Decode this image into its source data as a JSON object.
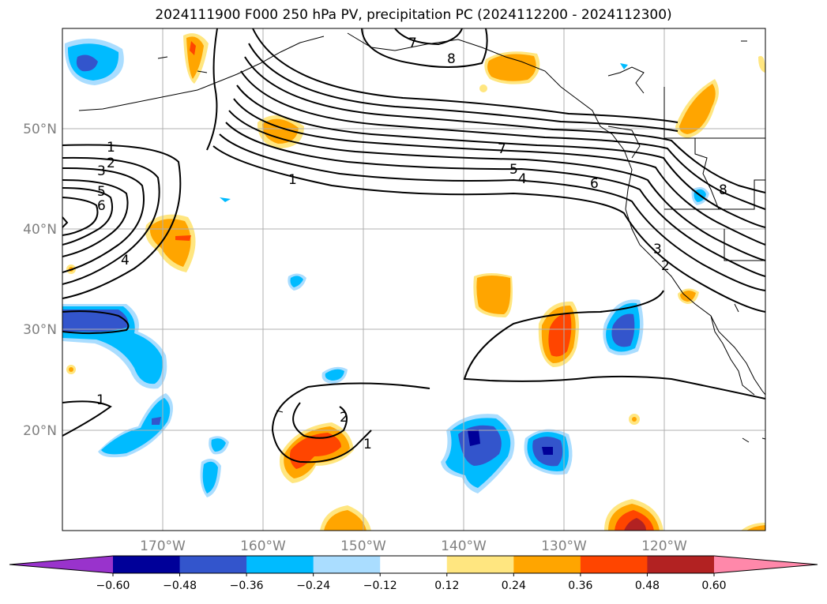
{
  "title": "2024111900 F000 250 hPa PV, precipitation PC (2024112200 - 2024112300)",
  "map": {
    "lat_labels": [
      "50°N",
      "40°N",
      "30°N",
      "20°N"
    ],
    "lon_labels": [
      "170°W",
      "160°W",
      "150°W",
      "140°W",
      "130°W",
      "120°W"
    ],
    "gridlines": true,
    "contour_color": "#000000",
    "contour_labels": [
      "1",
      "2",
      "3",
      "5",
      "6",
      "4",
      "7",
      "8",
      "1",
      "5",
      "4",
      "6",
      "3",
      "2",
      "8",
      "1",
      "2",
      "1",
      "7"
    ]
  },
  "colorbar": {
    "orientation": "horizontal",
    "extend": "both",
    "tick_labels": [
      "−0.60",
      "−0.48",
      "−0.36",
      "−0.24",
      "−0.12",
      "0.12",
      "0.24",
      "0.36",
      "0.48",
      "0.60"
    ],
    "colors": [
      "#9933cc",
      "#000099",
      "#3355cc",
      "#00bbff",
      "#aaddff",
      "#ffffff",
      "#ffe680",
      "#ffa500",
      "#ff4500",
      "#b22222",
      "#ff88aa"
    ]
  }
}
